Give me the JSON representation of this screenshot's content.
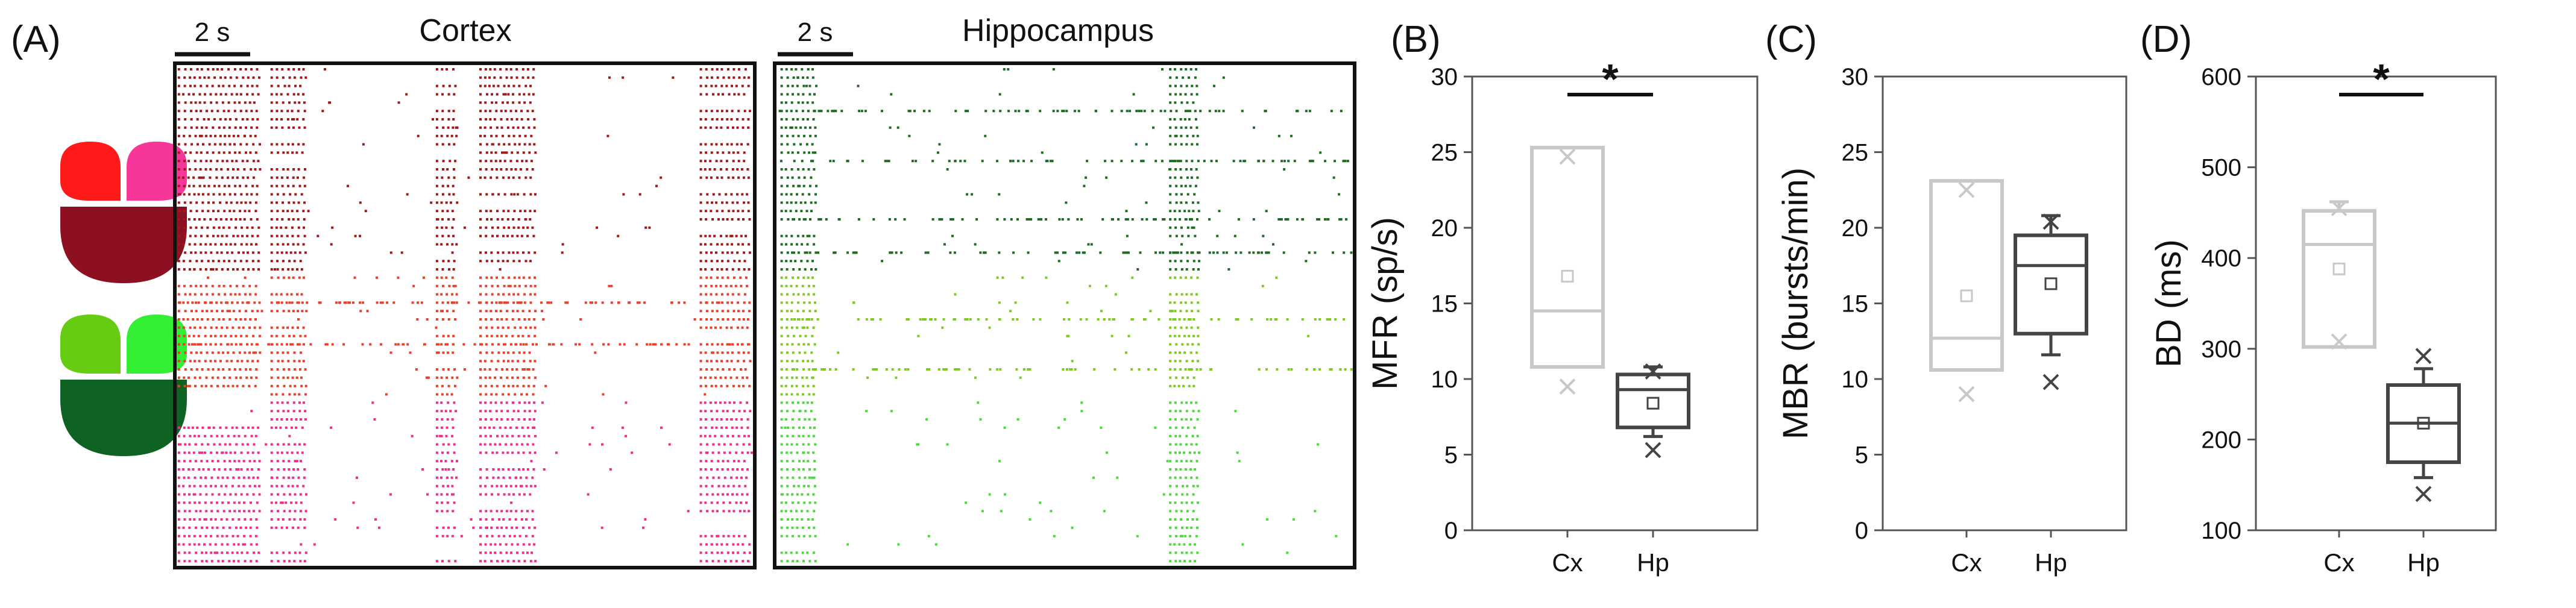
{
  "panels": {
    "a": {
      "label": "(A)"
    },
    "b": {
      "label": "(B)"
    },
    "c": {
      "label": "(C)"
    },
    "d": {
      "label": "(D)"
    }
  },
  "raster_cortex": {
    "title": "Cortex",
    "scalebar": "2 s",
    "colors": {
      "top": "#A01818",
      "middle": "#E8402A",
      "bottom": "#EE2F8A",
      "icon_left": "#FF1A1A",
      "icon_right": "#F7369A",
      "icon_bottom": "#8C0F22"
    }
  },
  "raster_hippocampus": {
    "title": "Hippocampus",
    "scalebar": "2 s",
    "colors": {
      "top": "#1E6B22",
      "middle": "#7CCB1E",
      "bottom": "#4FD83F",
      "icon_left": "#66CC11",
      "icon_right": "#33EE33",
      "icon_bottom": "#0E6222"
    }
  },
  "significance_marker": "*",
  "chart_data": [
    {
      "type": "box",
      "panel": "B",
      "title": "",
      "xlabel": "",
      "ylabel": "MFR (sp/s)",
      "categories": [
        "Cx",
        "Hp"
      ],
      "ylim": [
        0,
        30
      ],
      "yticks": [
        0,
        5,
        10,
        15,
        20,
        25,
        30
      ],
      "significance": {
        "between": [
          "Cx",
          "Hp"
        ],
        "label": "*"
      },
      "boxes": [
        {
          "name": "Cx",
          "color": "#C8C8C8",
          "q1": 10.8,
          "median": 14.5,
          "q3": 25.3,
          "whisker_low": 10.8,
          "whisker_high": 25.3,
          "mean": 16.8,
          "extremes": [
            9.5,
            24.7
          ]
        },
        {
          "name": "Hp",
          "color": "#444444",
          "q1": 6.8,
          "median": 9.3,
          "q3": 10.3,
          "whisker_low": 6.2,
          "whisker_high": 10.8,
          "mean": 8.4,
          "extremes": [
            5.3,
            10.5
          ]
        }
      ]
    },
    {
      "type": "box",
      "panel": "C",
      "title": "",
      "xlabel": "",
      "ylabel": "MBR (bursts/min)",
      "categories": [
        "Cx",
        "Hp"
      ],
      "ylim": [
        0,
        30
      ],
      "yticks": [
        0,
        5,
        10,
        15,
        20,
        25,
        30
      ],
      "significance": null,
      "boxes": [
        {
          "name": "Cx",
          "color": "#C8C8C8",
          "q1": 10.6,
          "median": 12.7,
          "q3": 23.1,
          "whisker_low": 10.6,
          "whisker_high": 23.1,
          "mean": 15.5,
          "extremes": [
            9.0,
            22.5
          ]
        },
        {
          "name": "Hp",
          "color": "#444444",
          "q1": 13.0,
          "median": 17.5,
          "q3": 19.5,
          "whisker_low": 11.6,
          "whisker_high": 20.8,
          "mean": 16.3,
          "extremes": [
            9.8,
            20.4
          ]
        }
      ]
    },
    {
      "type": "box",
      "panel": "D",
      "title": "",
      "xlabel": "",
      "ylabel": "BD (ms)",
      "categories": [
        "Cx",
        "Hp"
      ],
      "ylim": [
        100,
        600
      ],
      "yticks": [
        100,
        200,
        300,
        400,
        500,
        600
      ],
      "significance": {
        "between": [
          "Cx",
          "Hp"
        ],
        "label": "*"
      },
      "boxes": [
        {
          "name": "Cx",
          "color": "#C8C8C8",
          "q1": 302,
          "median": 415,
          "q3": 452,
          "whisker_low": 302,
          "whisker_high": 462,
          "mean": 388,
          "extremes": [
            308,
            455
          ]
        },
        {
          "name": "Hp",
          "color": "#444444",
          "q1": 175,
          "median": 218,
          "q3": 260,
          "whisker_low": 158,
          "whisker_high": 278,
          "mean": 218,
          "extremes": [
            140,
            292
          ]
        }
      ]
    }
  ]
}
